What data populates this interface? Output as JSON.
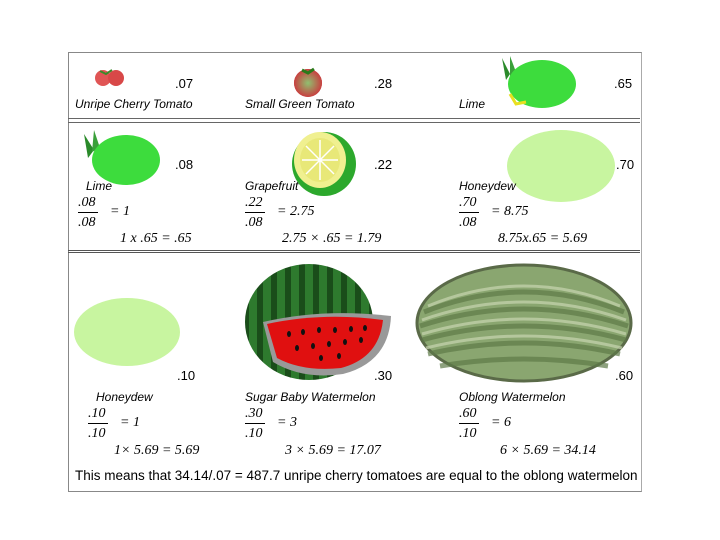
{
  "row1": {
    "items": [
      {
        "label": "Unripe Cherry Tomato",
        "value": ".07"
      },
      {
        "label": "Small Green Tomato",
        "value": ".28"
      },
      {
        "label": "Lime",
        "value": ".65"
      }
    ]
  },
  "row2": {
    "items": [
      {
        "label": "Lime",
        "value": ".08",
        "frac_num": ".08",
        "frac_den": ".08",
        "frac_result": "= 1",
        "product": "1 x .65 = .65"
      },
      {
        "label": "Grapefruit",
        "value": ".22",
        "frac_num": ".22",
        "frac_den": ".08",
        "frac_result": "= 2.75",
        "product": "2.75 × .65 = 1.79"
      },
      {
        "label": "Honeydew",
        "value": ".70",
        "frac_num": ".70",
        "frac_den": ".08",
        "frac_result": "= 8.75",
        "product": "8.75x.65 = 5.69"
      }
    ]
  },
  "row3": {
    "items": [
      {
        "label": "Honeydew",
        "value": ".10",
        "frac_num": ".10",
        "frac_den": ".10",
        "frac_result": "= 1",
        "product": "1× 5.69 = 5.69"
      },
      {
        "label": "Sugar Baby Watermelon",
        "value": ".30",
        "frac_num": ".30",
        "frac_den": ".10",
        "frac_result": "= 3",
        "product": "3 × 5.69 = 17.07"
      },
      {
        "label": "Oblong Watermelon",
        "value": ".60",
        "frac_num": ".60",
        "frac_den": ".10",
        "frac_result": "= 6",
        "product": "6 × 5.69 = 34.14"
      }
    ]
  },
  "summary": "This means that 34.14/.07 = 487.7 unripe cherry tomatoes are equal to the oblong watermelon",
  "colors": {
    "honeydew": "#c8f5a0",
    "lime": "#3ddc3d",
    "watermelon_red": "#e01010"
  }
}
